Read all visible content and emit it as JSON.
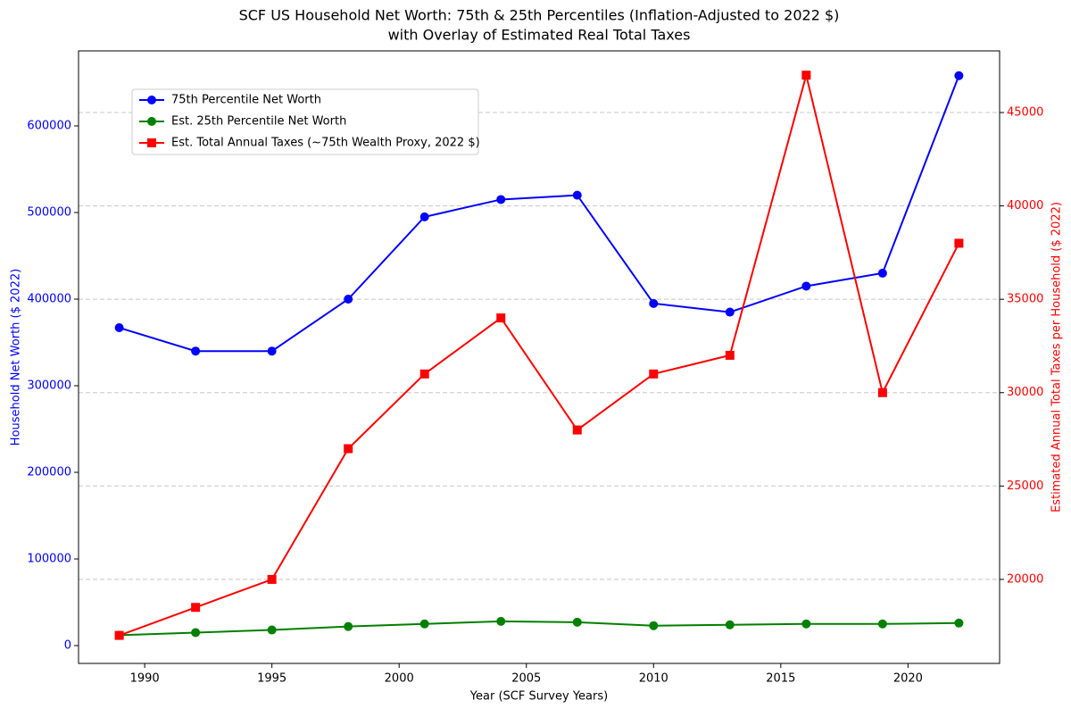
{
  "chart_data": {
    "type": "line",
    "title": "SCF US Household Net Worth: 75th & 25th Percentiles (Inflation-Adjusted to 2022 $)",
    "subtitle": "with Overlay of Estimated Real Total Taxes",
    "x_label": "Year (SCF Survey Years)",
    "y_label": "Household Net Worth ($ 2022)",
    "y2_label": "Estimated Annual Total Taxes per Household ($ 2022)",
    "x": [
      1989,
      1992,
      1995,
      1998,
      2001,
      2004,
      2007,
      2010,
      2013,
      2016,
      2019,
      2022
    ],
    "series": [
      {
        "name": "75th Percentile Net Worth",
        "color": "#0000ff",
        "marker": "circle",
        "axis": "y",
        "values": [
          367000,
          340000,
          340000,
          400000,
          495000,
          515000,
          520000,
          395000,
          385000,
          415000,
          430000,
          658000
        ]
      },
      {
        "name": "Est. 25th Percentile Net Worth",
        "color": "#008000",
        "marker": "circle",
        "axis": "y",
        "values": [
          12000,
          15000,
          18000,
          22000,
          25000,
          28000,
          27000,
          23000,
          24000,
          25000,
          25000,
          26000
        ]
      },
      {
        "name": "Est. Total Annual Taxes (~75th Wealth Proxy, 2022 $)",
        "color": "#ff0000",
        "marker": "square",
        "axis": "y2",
        "values": [
          17000,
          18500,
          20000,
          27000,
          31000,
          34000,
          28000,
          31000,
          32000,
          47000,
          30000,
          38000
        ]
      }
    ],
    "xlim": [
      1987.4,
      2023.6
    ],
    "xticks": [
      1990,
      1995,
      2000,
      2005,
      2010,
      2015,
      2020
    ],
    "ylim": [
      -20600,
      686600
    ],
    "yticks": [
      0,
      100000,
      200000,
      300000,
      400000,
      500000,
      600000
    ],
    "y2lim": [
      15500,
      48300
    ],
    "y2ticks": [
      20000,
      25000,
      30000,
      35000,
      40000,
      45000
    ],
    "y_color": "#0000ff",
    "y2_color": "#ff0000",
    "grid": "y2",
    "legend": "upper-left"
  }
}
